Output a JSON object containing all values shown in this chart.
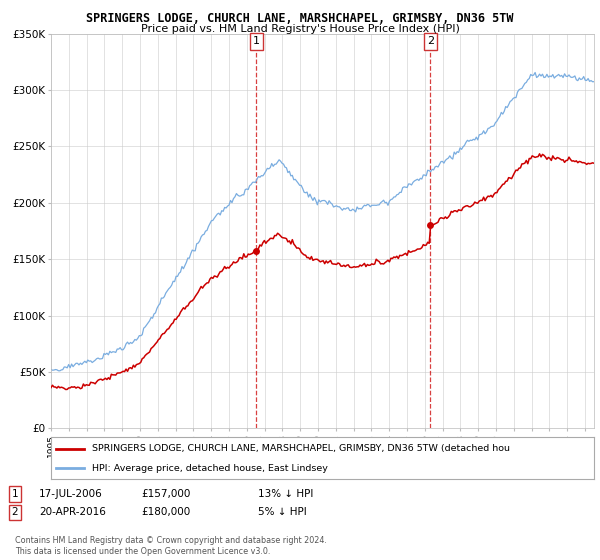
{
  "title": "SPRINGERS LODGE, CHURCH LANE, MARSHCHAPEL, GRIMSBY, DN36 5TW",
  "subtitle": "Price paid vs. HM Land Registry's House Price Index (HPI)",
  "sale1_x": 2006.54,
  "sale1_price": 157000,
  "sale2_x": 2016.3,
  "sale2_price": 180000,
  "legend_line1": "SPRINGERS LODGE, CHURCH LANE, MARSHCHAPEL, GRIMSBY, DN36 5TW (detached hou",
  "legend_line2": "HPI: Average price, detached house, East Lindsey",
  "footer": "Contains HM Land Registry data © Crown copyright and database right 2024.\nThis data is licensed under the Open Government Licence v3.0.",
  "red_color": "#cc0000",
  "blue_color": "#7aade0",
  "background_color": "#ffffff",
  "grid_color": "#cccccc",
  "ann1_date": "17-JUL-2006",
  "ann1_price": "£157,000",
  "ann1_hpi": "13% ↓ HPI",
  "ann2_date": "20-APR-2016",
  "ann2_price": "£180,000",
  "ann2_hpi": "5% ↓ HPI"
}
